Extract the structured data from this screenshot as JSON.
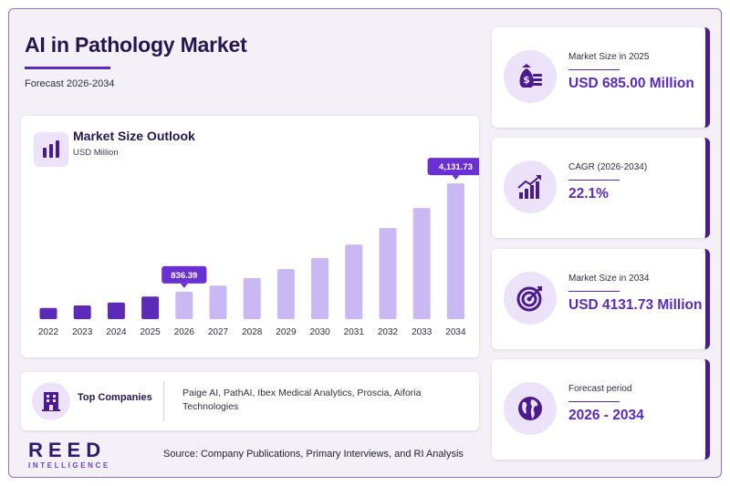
{
  "header": {
    "title": "AI in Pathology Market",
    "subtitle": "Forecast 2026-2034"
  },
  "chart_panel": {
    "title": "Market Size Outlook",
    "unit": "USD Million",
    "icon": "bar-chart-icon"
  },
  "chart_data": {
    "type": "bar",
    "title": "Market Size Outlook",
    "ylabel": "USD Million",
    "categories": [
      "2022",
      "2023",
      "2024",
      "2025",
      "2026",
      "2027",
      "2028",
      "2029",
      "2030",
      "2031",
      "2032",
      "2033",
      "2034"
    ],
    "values": [
      340,
      415,
      505,
      685,
      836.39,
      1021,
      1247,
      1522,
      1858,
      2269,
      2770,
      3382,
      4131.73
    ],
    "historical_until": "2025",
    "callouts": [
      {
        "category": "2026",
        "label": "836.39"
      },
      {
        "category": "2034",
        "label": "4,131.73"
      }
    ],
    "ylim": [
      0,
      4300
    ],
    "colors": {
      "historical": "#5b2bb8",
      "forecast": "#c9b8f1",
      "callout": "#6a30d4"
    },
    "grid": false,
    "legend": "none"
  },
  "companies": {
    "label": "Top Companies",
    "text": "Paige AI, PathAI, Ibex Medical Analytics, Proscia, Aiforia Technologies",
    "icon": "building-icon"
  },
  "branding": {
    "logo_main": "REED",
    "logo_sub": "INTELLIGENCE"
  },
  "source": "Source: Company Publications, Primary Interviews, and RI Analysis",
  "stats": [
    {
      "label": "Market Size in 2025",
      "value": "USD 685.00 Million",
      "icon": "money-bag-icon"
    },
    {
      "label": "CAGR (2026-2034)",
      "value": "22.1%",
      "icon": "growth-chart-icon"
    },
    {
      "label": "Market Size in 2034",
      "value": "USD 4131.73 Million",
      "icon": "target-icon"
    },
    {
      "label": "Forecast period",
      "value": "2026 - 2034",
      "icon": "globe-icon"
    }
  ],
  "theme": {
    "accent": "#5b2bb8",
    "dark": "#241750",
    "light": "#ece3fb"
  }
}
